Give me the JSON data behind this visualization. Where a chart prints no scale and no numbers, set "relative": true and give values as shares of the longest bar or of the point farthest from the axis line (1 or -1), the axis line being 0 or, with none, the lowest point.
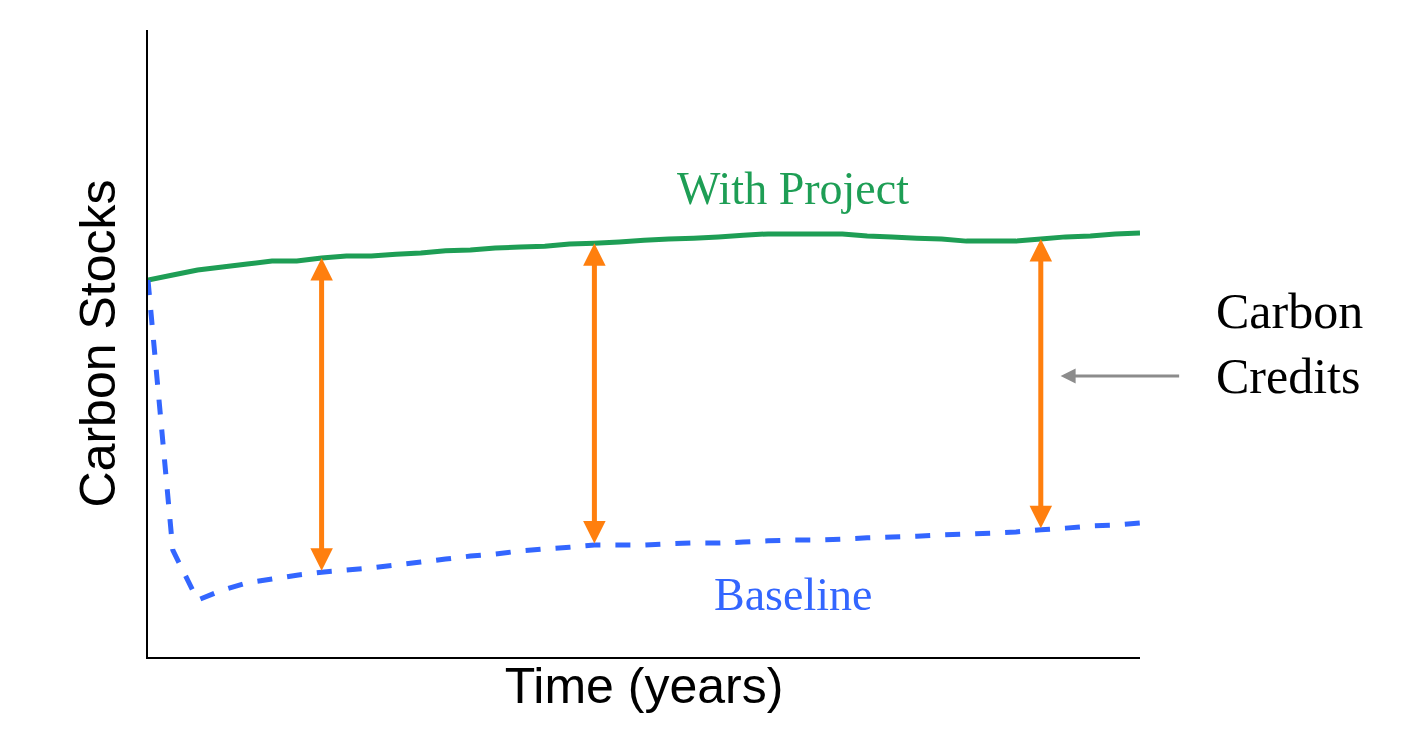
{
  "chart_data": {
    "type": "line",
    "relative": true,
    "xlabel": "Time (years)",
    "ylabel": "Carbon Stocks",
    "categories": [
      null,
      null,
      null,
      null,
      null,
      null,
      null,
      null,
      null,
      null,
      null,
      null,
      null,
      null,
      null,
      null,
      null,
      null,
      null,
      null,
      null,
      null,
      null,
      null,
      null,
      null,
      null,
      null,
      null,
      null,
      null,
      null,
      null,
      null,
      null,
      null,
      null,
      null,
      null,
      null,
      null
    ],
    "series": [
      {
        "name": "With Project",
        "color": "#1e9e55",
        "line_style": "solid",
        "values": [
          0.889,
          0.901,
          0.913,
          0.92,
          0.927,
          0.934,
          0.934,
          0.941,
          0.946,
          0.946,
          0.95,
          0.953,
          0.958,
          0.96,
          0.965,
          0.967,
          0.969,
          0.974,
          0.976,
          0.979,
          0.983,
          0.986,
          0.988,
          0.991,
          0.995,
          0.998,
          0.998,
          0.998,
          0.998,
          0.993,
          0.991,
          0.988,
          0.986,
          0.981,
          0.981,
          0.981,
          0.986,
          0.991,
          0.993,
          0.998,
          1.0
        ]
      },
      {
        "name": "Baseline",
        "color": "#3366ff",
        "line_style": "dashed",
        "values": [
          0.889,
          0.252,
          0.134,
          0.158,
          0.175,
          0.184,
          0.193,
          0.2,
          0.205,
          0.21,
          0.217,
          0.224,
          0.231,
          0.238,
          0.243,
          0.25,
          0.255,
          0.259,
          0.264,
          0.264,
          0.264,
          0.267,
          0.269,
          0.269,
          0.271,
          0.274,
          0.276,
          0.276,
          0.278,
          0.281,
          0.283,
          0.285,
          0.288,
          0.29,
          0.292,
          0.295,
          0.3,
          0.304,
          0.309,
          0.311,
          0.316
        ]
      }
    ],
    "annotations": [
      "Carbon Credits"
    ],
    "legend": false
  }
}
